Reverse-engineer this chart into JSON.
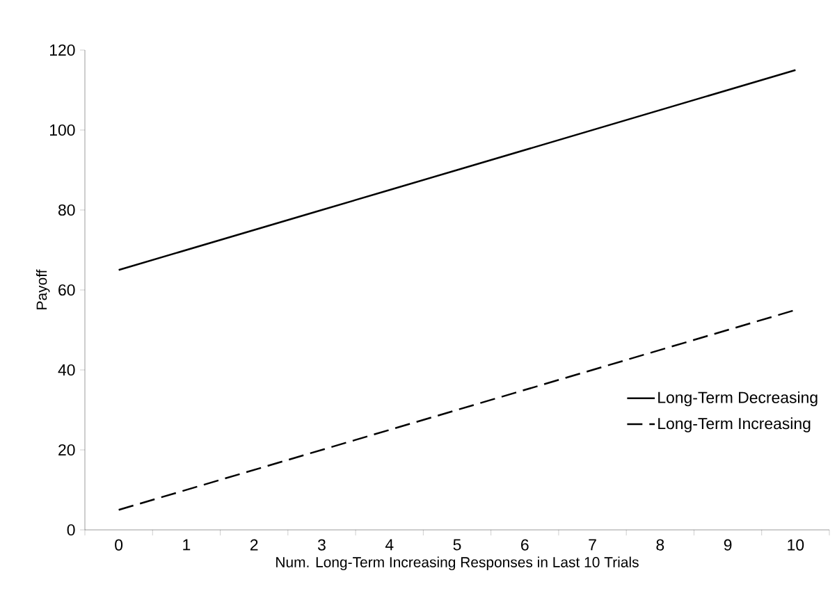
{
  "chart_data": {
    "type": "line",
    "xlabel": "Num. Long-Term Increasing Responses in Last 10 Trials",
    "ylabel": "Payoff",
    "categories": [
      "0",
      "1",
      "2",
      "3",
      "4",
      "5",
      "6",
      "7",
      "8",
      "9",
      "10"
    ],
    "series": [
      {
        "name": "Long-Term Decreasing",
        "color": "#000000",
        "line_style": "solid",
        "values": [
          65,
          70,
          75,
          80,
          85,
          90,
          95,
          100,
          105,
          110,
          115
        ]
      },
      {
        "name": "Long-Term Increasing",
        "color": "#000000",
        "line_style": "dashed",
        "values": [
          5,
          10,
          15,
          20,
          25,
          30,
          35,
          40,
          45,
          50,
          55
        ]
      }
    ],
    "ylim": [
      0,
      120
    ],
    "yticks": [
      0,
      20,
      40,
      60,
      80,
      100,
      120
    ],
    "grid": false,
    "legend": "bottom right",
    "marker": "none"
  }
}
